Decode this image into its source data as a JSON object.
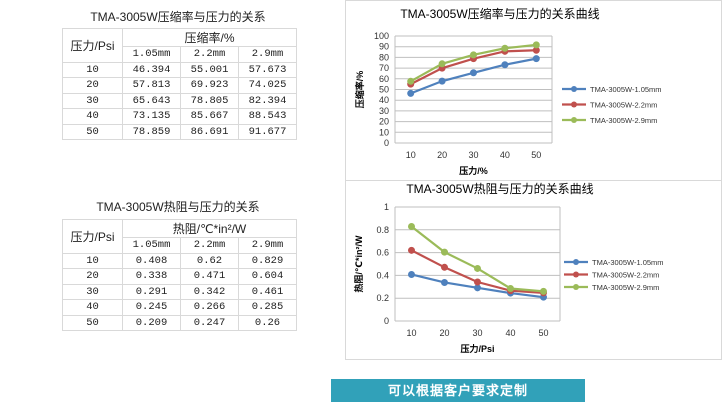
{
  "table1": {
    "title": "TMA-3005W压缩率与压力的关系",
    "row_header": "压力/Psi",
    "group_header": "压缩率/%",
    "columns": [
      "1.05mm",
      "2.2mm",
      "2.9mm"
    ],
    "rows": [
      {
        "label": "10",
        "values": [
          "46.394",
          "55.001",
          "57.673"
        ]
      },
      {
        "label": "20",
        "values": [
          "57.813",
          "69.923",
          "74.025"
        ]
      },
      {
        "label": "30",
        "values": [
          "65.643",
          "78.805",
          "82.394"
        ]
      },
      {
        "label": "40",
        "values": [
          "73.135",
          "85.667",
          "88.543"
        ]
      },
      {
        "label": "50",
        "values": [
          "78.859",
          "86.691",
          "91.677"
        ]
      }
    ]
  },
  "table2": {
    "title": "TMA-3005W热阻与压力的关系",
    "row_header": "压力/Psi",
    "group_header": "热阻/℃*in²/W",
    "columns": [
      "1.05mm",
      "2.2mm",
      "2.9mm"
    ],
    "rows": [
      {
        "label": "10",
        "values": [
          "0.408",
          "0.62",
          "0.829"
        ]
      },
      {
        "label": "20",
        "values": [
          "0.338",
          "0.471",
          "0.604"
        ]
      },
      {
        "label": "30",
        "values": [
          "0.291",
          "0.342",
          "0.461"
        ]
      },
      {
        "label": "40",
        "values": [
          "0.245",
          "0.266",
          "0.285"
        ]
      },
      {
        "label": "50",
        "values": [
          "0.209",
          "0.247",
          "0.26"
        ]
      }
    ]
  },
  "banner": "可以根据客户要求定制",
  "chart_data": [
    {
      "type": "line",
      "title": "TMA-3005W压缩率与压力的关系曲线",
      "xlabel": "压力/%",
      "ylabel": "压缩率/%",
      "x": [
        10,
        20,
        30,
        40,
        50
      ],
      "ylim": [
        0,
        100
      ],
      "yticks": [
        0,
        10,
        20,
        30,
        40,
        50,
        60,
        70,
        80,
        90,
        100
      ],
      "grid": true,
      "legend": "right",
      "series": [
        {
          "name": "TMA-3005W-1.05mm",
          "color": "#4f81bd",
          "values": [
            46.394,
            57.813,
            65.643,
            73.135,
            78.859
          ]
        },
        {
          "name": "TMA-3005W-2.2mm",
          "color": "#c0504d",
          "values": [
            55.001,
            69.923,
            78.805,
            85.667,
            86.691
          ]
        },
        {
          "name": "TMA-3005W-2.9mm",
          "color": "#9bbb59",
          "values": [
            57.673,
            74.025,
            82.394,
            88.543,
            91.677
          ]
        }
      ]
    },
    {
      "type": "line",
      "title": "TMA-3005W热阻与压力的关系曲线",
      "xlabel": "压力/Psi",
      "ylabel": "热阻/℃*in²/W",
      "x": [
        10,
        20,
        30,
        40,
        50
      ],
      "ylim": [
        0,
        1
      ],
      "yticks": [
        0,
        0.2,
        0.4,
        0.6,
        0.8,
        1
      ],
      "grid": true,
      "legend": "right",
      "series": [
        {
          "name": "TMA-3005W-1.05mm",
          "color": "#4f81bd",
          "values": [
            0.408,
            0.338,
            0.291,
            0.245,
            0.209
          ]
        },
        {
          "name": "TMA-3005W-2.2mm",
          "color": "#c0504d",
          "values": [
            0.62,
            0.471,
            0.342,
            0.266,
            0.247
          ]
        },
        {
          "name": "TMA-3005W-2.9mm",
          "color": "#9bbb59",
          "values": [
            0.829,
            0.604,
            0.461,
            0.285,
            0.26
          ]
        }
      ]
    }
  ]
}
